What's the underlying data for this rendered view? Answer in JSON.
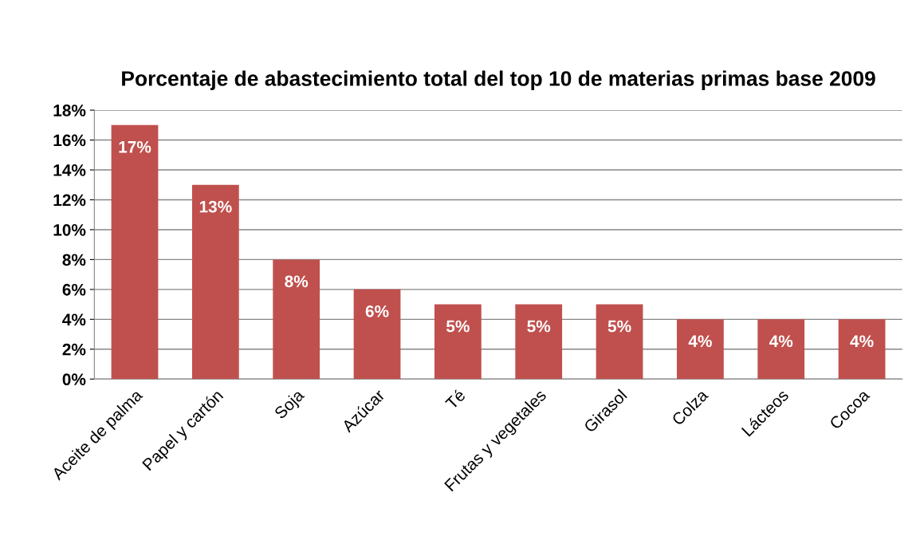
{
  "chart_data": {
    "type": "bar",
    "title": "Porcentaje de abastecimiento total del top 10 de materias primas base 2009",
    "categories": [
      "Aceite de palma",
      "Papel y cartón",
      "Soja",
      "Azúcar",
      "Té",
      "Frutas y vegetales",
      "Girasol",
      "Colza",
      "Lácteos",
      "Cocoa"
    ],
    "values": [
      17,
      13,
      8,
      6,
      5,
      5,
      5,
      4,
      4,
      4
    ],
    "value_labels": [
      "17%",
      "13%",
      "8%",
      "6%",
      "5%",
      "5%",
      "5%",
      "4%",
      "4%",
      "4%"
    ],
    "color": "#c0504d",
    "ylim": [
      0,
      18
    ],
    "yticks": [
      {
        "value": 0,
        "label": "0%"
      },
      {
        "value": 2,
        "label": "2%"
      },
      {
        "value": 4,
        "label": "4%"
      },
      {
        "value": 6,
        "label": "6%"
      },
      {
        "value": 8,
        "label": "8%"
      },
      {
        "value": 10,
        "label": "10%"
      },
      {
        "value": 12,
        "label": "12%"
      },
      {
        "value": 14,
        "label": "14%"
      },
      {
        "value": 16,
        "label": "16%"
      },
      {
        "value": 18,
        "label": "18%"
      }
    ],
    "grid": "y",
    "legend": false
  }
}
